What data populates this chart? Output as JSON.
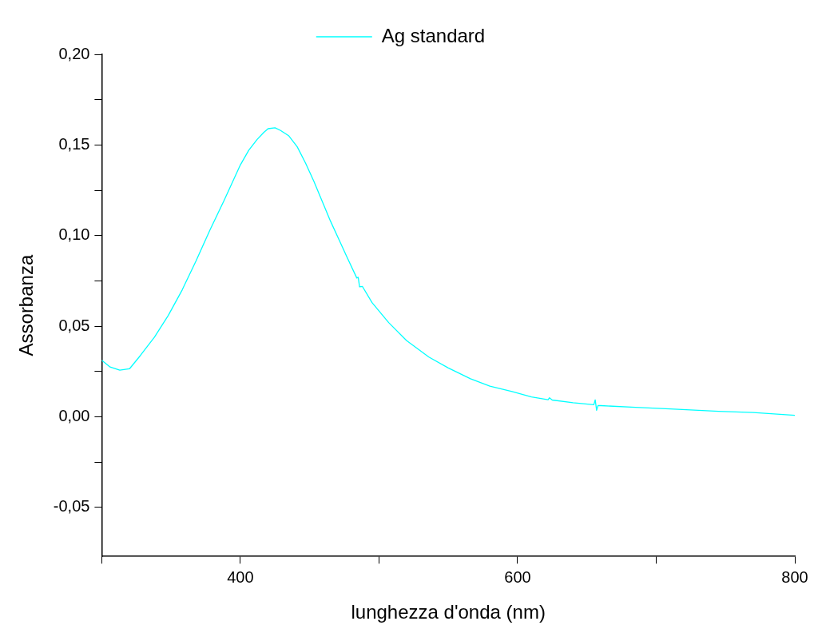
{
  "chart_data": {
    "type": "line",
    "xlabel": "lunghezza d'onda (nm)",
    "ylabel": "Assorbanza",
    "xlim": [
      300,
      800
    ],
    "ylim": [
      -0.077,
      0.2
    ],
    "xticks": [
      {
        "value": 300,
        "label": null
      },
      {
        "value": 400,
        "label": "400"
      },
      {
        "value": 500,
        "label": null
      },
      {
        "value": 600,
        "label": "600"
      },
      {
        "value": 700,
        "label": null
      },
      {
        "value": 800,
        "label": "800"
      }
    ],
    "yticks": [
      {
        "value": -0.05,
        "label": "-0,05"
      },
      {
        "value": -0.025,
        "label": null
      },
      {
        "value": 0,
        "label": "0,00"
      },
      {
        "value": 0.025,
        "label": null
      },
      {
        "value": 0.05,
        "label": "0,05"
      },
      {
        "value": 0.075,
        "label": null
      },
      {
        "value": 0.1,
        "label": "0,10"
      },
      {
        "value": 0.125,
        "label": null
      },
      {
        "value": 0.15,
        "label": "0,15"
      },
      {
        "value": 0.175,
        "label": null
      },
      {
        "value": 0.2,
        "label": "0,20"
      }
    ],
    "grid": false,
    "legend": "top",
    "marker": "none",
    "line_style": "solid",
    "series": [
      {
        "name": "Ag standard",
        "color": "#00ffff",
        "x": [
          300,
          306,
          313,
          320,
          328,
          338,
          348,
          358,
          368,
          378,
          388,
          394,
          400,
          406,
          412,
          417,
          420,
          425,
          429,
          435,
          441,
          447,
          453,
          459,
          465,
          471,
          477,
          484,
          485,
          486,
          488,
          495,
          507,
          520,
          536,
          550,
          566,
          580,
          596,
          610,
          622,
          623,
          625,
          640,
          655,
          656,
          657,
          658,
          660,
          685,
          710,
          745,
          770,
          800
        ],
        "values": [
          0.0312,
          0.0275,
          0.0258,
          0.0265,
          0.034,
          0.044,
          0.056,
          0.07,
          0.086,
          0.103,
          0.119,
          0.129,
          0.139,
          0.147,
          0.153,
          0.157,
          0.159,
          0.1595,
          0.158,
          0.155,
          0.149,
          0.14,
          0.13,
          0.119,
          0.108,
          0.098,
          0.088,
          0.0766,
          0.077,
          0.0717,
          0.072,
          0.063,
          0.052,
          0.042,
          0.033,
          0.027,
          0.021,
          0.017,
          0.014,
          0.011,
          0.0095,
          0.0105,
          0.0093,
          0.0078,
          0.0067,
          0.0094,
          0.0036,
          0.0062,
          0.0062,
          0.0053,
          0.0044,
          0.0031,
          0.0024,
          0.0009
        ]
      }
    ]
  }
}
